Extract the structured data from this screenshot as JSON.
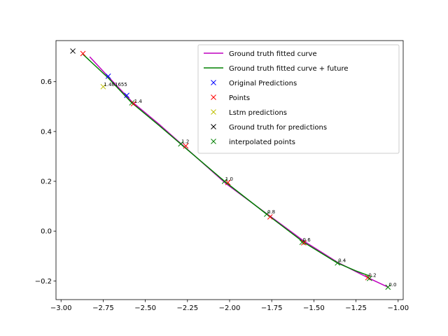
{
  "chart_data": {
    "type": "line",
    "title": "",
    "xlabel": "",
    "ylabel": "",
    "xlim": [
      -3.03,
      -0.97
    ],
    "ylim": [
      -0.275,
      0.765
    ],
    "x_ticks": [
      -3.0,
      -2.75,
      -2.5,
      -2.25,
      -2.0,
      -1.75,
      -1.5,
      -1.25,
      -1.0
    ],
    "x_tick_labels": [
      "−3.00",
      "−2.75",
      "−2.50",
      "−2.25",
      "−2.00",
      "−1.75",
      "−1.50",
      "−1.25",
      "−1.00"
    ],
    "y_ticks": [
      -0.2,
      0.0,
      0.2,
      0.4,
      0.6
    ],
    "y_tick_labels": [
      "−0.2",
      "0.0",
      "0.2",
      "0.4",
      "0.6"
    ],
    "grid": false,
    "legend_position": "top-right",
    "series": [
      {
        "name": "Ground truth fitted curve",
        "kind": "line",
        "color": "#bf00bf",
        "x": [
          -2.83,
          -2.72,
          -2.58,
          -2.42,
          -2.27,
          -2.02,
          -1.77,
          -1.56,
          -1.36,
          -1.17,
          -1.06
        ],
        "y": [
          0.7,
          0.62,
          0.52,
          0.43,
          0.34,
          0.19,
          0.065,
          -0.04,
          -0.125,
          -0.19,
          -0.225
        ]
      },
      {
        "name": "Ground truth fitted curve + future",
        "kind": "line",
        "color": "#008000",
        "x": [
          -2.87,
          -2.72,
          -2.58,
          -2.42,
          -2.29,
          -2.03,
          -1.78,
          -1.56,
          -1.36,
          -1.25,
          -1.17
        ],
        "y": [
          0.71,
          0.615,
          0.515,
          0.425,
          0.35,
          0.2,
          0.068,
          -0.045,
          -0.128,
          -0.16,
          -0.18
        ]
      },
      {
        "name": "Original Predictions",
        "kind": "marker",
        "color": "#0000ff",
        "x": [
          -2.72,
          -2.61
        ],
        "y": [
          0.622,
          0.545
        ]
      },
      {
        "name": "Points",
        "kind": "marker",
        "color": "#ff0000",
        "x": [
          -2.87,
          -2.57,
          -2.26,
          -2.01,
          -1.76,
          -1.56,
          -1.18
        ],
        "y": [
          0.713,
          0.512,
          0.342,
          0.195,
          0.057,
          -0.047,
          -0.187
        ]
      },
      {
        "name": "Lstm predictions",
        "kind": "marker",
        "color": "#bfbf00",
        "x": [
          -2.75
        ],
        "y": [
          0.58
        ]
      },
      {
        "name": "Ground truth for predictions",
        "kind": "marker",
        "color": "#000000",
        "x": [
          -2.93
        ],
        "y": [
          0.723
        ]
      },
      {
        "name": "interpolated points",
        "kind": "marker",
        "color": "#008000",
        "x": [
          -2.58,
          -2.29,
          -2.03,
          -1.78,
          -1.57,
          -1.36,
          -1.17,
          -1.06
        ],
        "y": [
          0.515,
          0.35,
          0.2,
          0.068,
          -0.045,
          -0.128,
          -0.19,
          -0.225
        ]
      }
    ],
    "annotations": [
      {
        "text": "1.481655",
        "x": -2.75,
        "y": 0.58
      },
      {
        "text": "1.4",
        "x": -2.57,
        "y": 0.512
      },
      {
        "text": "1.2",
        "x": -2.29,
        "y": 0.35
      },
      {
        "text": "1.0",
        "x": -2.03,
        "y": 0.2
      },
      {
        "text": "0.8",
        "x": -1.78,
        "y": 0.068
      },
      {
        "text": "0.6",
        "x": -1.57,
        "y": -0.045
      },
      {
        "text": "0.4",
        "x": -1.36,
        "y": -0.128
      },
      {
        "text": "0.2",
        "x": -1.18,
        "y": -0.187
      },
      {
        "text": "0.0",
        "x": -1.06,
        "y": -0.225
      }
    ]
  }
}
